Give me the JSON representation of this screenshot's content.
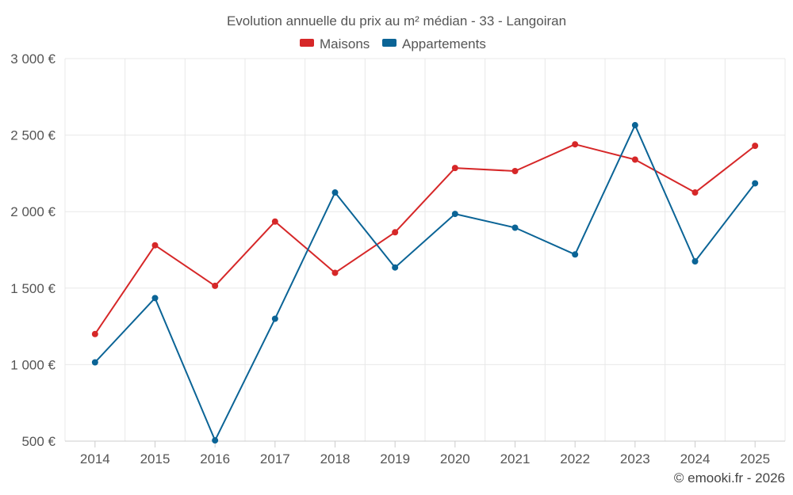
{
  "chart_data": {
    "type": "line",
    "title": "Evolution annuelle du prix au m² médian - 33 - Langoiran",
    "categories": [
      "2014",
      "2015",
      "2016",
      "2017",
      "2018",
      "2019",
      "2020",
      "2021",
      "2022",
      "2023",
      "2024",
      "2025"
    ],
    "ylim": [
      500,
      3000
    ],
    "yticks": [
      500,
      1000,
      1500,
      2000,
      2500,
      3000
    ],
    "ytick_labels": [
      "500 €",
      "1 000 €",
      "1 500 €",
      "2 000 €",
      "2 500 €",
      "3 000 €"
    ],
    "grid": true,
    "legend_position": "top-center",
    "series": [
      {
        "name": "Maisons",
        "color": "#d62728",
        "values": [
          1200,
          1780,
          1515,
          1935,
          1600,
          1865,
          2285,
          2265,
          2440,
          2340,
          2125,
          2430
        ]
      },
      {
        "name": "Appartements",
        "color": "#0b6496",
        "values": [
          1015,
          1435,
          505,
          1300,
          2125,
          1635,
          1985,
          1895,
          1720,
          2565,
          1675,
          2185
        ]
      }
    ]
  },
  "credit": "© emooki.fr - 2026"
}
